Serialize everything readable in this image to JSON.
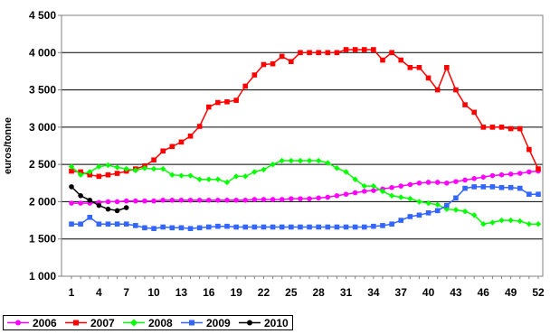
{
  "chart_data": {
    "type": "line",
    "title": "",
    "xlabel": "",
    "ylabel": "euros/tonne",
    "ylim": [
      1000,
      4500
    ],
    "xlim": [
      1,
      52
    ],
    "yticks": [
      "1 000",
      "1 500",
      "2 000",
      "2 500",
      "3 000",
      "3 500",
      "4 000",
      "4 500"
    ],
    "xticks": [
      "1",
      "4",
      "7",
      "10",
      "13",
      "16",
      "19",
      "22",
      "25",
      "28",
      "31",
      "34",
      "37",
      "40",
      "43",
      "46",
      "49",
      "52"
    ],
    "grid": "horizontal",
    "legend_position": "bottom-left",
    "series": [
      {
        "name": "2006",
        "color": "#FF00FF",
        "marker": "circle",
        "x": [
          1,
          2,
          3,
          4,
          5,
          6,
          7,
          8,
          9,
          10,
          11,
          12,
          13,
          14,
          15,
          16,
          17,
          18,
          19,
          20,
          21,
          22,
          23,
          24,
          25,
          26,
          27,
          28,
          29,
          30,
          31,
          32,
          33,
          34,
          35,
          36,
          37,
          38,
          39,
          40,
          41,
          42,
          43,
          44,
          45,
          46,
          47,
          48,
          49,
          50,
          51,
          52
        ],
        "y": [
          1980,
          1980,
          1980,
          1990,
          2000,
          2000,
          2010,
          2010,
          2010,
          2010,
          2020,
          2020,
          2020,
          2020,
          2020,
          2020,
          2020,
          2020,
          2020,
          2020,
          2030,
          2030,
          2030,
          2030,
          2040,
          2040,
          2040,
          2050,
          2060,
          2080,
          2100,
          2120,
          2140,
          2150,
          2170,
          2190,
          2210,
          2230,
          2250,
          2260,
          2260,
          2250,
          2270,
          2290,
          2310,
          2330,
          2350,
          2360,
          2370,
          2380,
          2400,
          2410
        ]
      },
      {
        "name": "2007",
        "color": "#FF0000",
        "marker": "square",
        "x": [
          1,
          2,
          3,
          4,
          5,
          6,
          7,
          8,
          9,
          10,
          11,
          12,
          13,
          14,
          15,
          16,
          17,
          18,
          19,
          20,
          21,
          22,
          23,
          24,
          25,
          26,
          27,
          28,
          29,
          30,
          31,
          32,
          33,
          34,
          35,
          36,
          37,
          38,
          39,
          40,
          41,
          42,
          43,
          44,
          45,
          46,
          47,
          48,
          49,
          50,
          51,
          52
        ],
        "y": [
          2410,
          2400,
          2360,
          2340,
          2360,
          2380,
          2410,
          2440,
          2480,
          2560,
          2680,
          2740,
          2800,
          2880,
          3010,
          3270,
          3330,
          3340,
          3360,
          3550,
          3700,
          3840,
          3850,
          3950,
          3880,
          4000,
          4000,
          4000,
          4000,
          4000,
          4040,
          4040,
          4040,
          4040,
          3900,
          4000,
          3900,
          3800,
          3800,
          3660,
          3500,
          3800,
          3500,
          3300,
          3200,
          3000,
          3000,
          3000,
          2980,
          2980,
          2700,
          2440
        ]
      },
      {
        "name": "2008",
        "color": "#00FF00",
        "marker": "diamond",
        "x": [
          1,
          2,
          3,
          4,
          5,
          6,
          7,
          8,
          9,
          10,
          11,
          12,
          13,
          14,
          15,
          16,
          17,
          18,
          19,
          20,
          21,
          22,
          23,
          24,
          25,
          26,
          27,
          28,
          29,
          30,
          31,
          32,
          33,
          34,
          35,
          36,
          37,
          38,
          39,
          40,
          41,
          42,
          43,
          44,
          45,
          46,
          47,
          48,
          49,
          50,
          51,
          52
        ],
        "y": [
          2470,
          2360,
          2400,
          2470,
          2490,
          2460,
          2440,
          2420,
          2450,
          2440,
          2440,
          2360,
          2350,
          2350,
          2300,
          2300,
          2300,
          2260,
          2340,
          2340,
          2400,
          2430,
          2500,
          2550,
          2550,
          2550,
          2550,
          2550,
          2520,
          2450,
          2400,
          2300,
          2210,
          2210,
          2140,
          2080,
          2060,
          2040,
          2000,
          1980,
          1960,
          1900,
          1890,
          1870,
          1820,
          1700,
          1720,
          1750,
          1750,
          1740,
          1700,
          1700
        ]
      },
      {
        "name": "2009",
        "color": "#3366FF",
        "marker": "square",
        "x": [
          1,
          2,
          3,
          4,
          5,
          6,
          7,
          8,
          9,
          10,
          11,
          12,
          13,
          14,
          15,
          16,
          17,
          18,
          19,
          20,
          21,
          22,
          23,
          24,
          25,
          26,
          27,
          28,
          29,
          30,
          31,
          32,
          33,
          34,
          35,
          36,
          37,
          38,
          39,
          40,
          41,
          42,
          43,
          44,
          45,
          46,
          47,
          48,
          49,
          50,
          51,
          52
        ],
        "y": [
          1700,
          1700,
          1790,
          1700,
          1700,
          1700,
          1700,
          1680,
          1650,
          1640,
          1660,
          1650,
          1650,
          1640,
          1650,
          1660,
          1670,
          1670,
          1660,
          1660,
          1660,
          1660,
          1660,
          1660,
          1660,
          1660,
          1660,
          1660,
          1660,
          1660,
          1660,
          1660,
          1660,
          1670,
          1680,
          1700,
          1750,
          1800,
          1820,
          1850,
          1880,
          1950,
          2050,
          2180,
          2200,
          2200,
          2200,
          2190,
          2190,
          2180,
          2100,
          2100
        ]
      },
      {
        "name": "2010",
        "color": "#000000",
        "marker": "circle",
        "x": [
          1,
          2,
          3,
          4,
          5,
          6,
          7
        ],
        "y": [
          2200,
          2080,
          2020,
          1950,
          1900,
          1880,
          1920
        ]
      }
    ]
  }
}
